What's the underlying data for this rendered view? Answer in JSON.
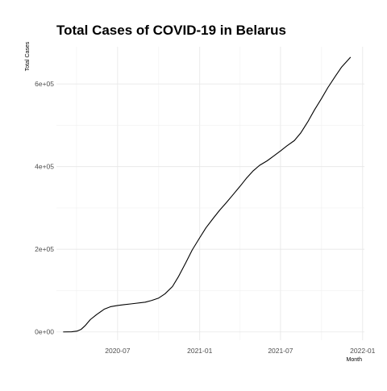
{
  "chart_data": {
    "type": "line",
    "title": "Total Cases of COVID-19 in Belarus",
    "xlabel": "Month",
    "ylabel": "Total Cases",
    "x_tick_labels": [
      "2020-07",
      "2021-01",
      "2021-07",
      "2022-01"
    ],
    "y_tick_labels": [
      "0e+00",
      "2e+05",
      "4e+05",
      "6e+05"
    ],
    "y_ticks": [
      0,
      200000,
      400000,
      600000
    ],
    "xlim": [
      "2020-02-15",
      "2022-01-05"
    ],
    "ylim": [
      -20000,
      690000
    ],
    "grid": true,
    "legend": "none",
    "line_color": "#000000",
    "series": [
      {
        "x": [
          "2020-03-01",
          "2020-03-20",
          "2020-04-01",
          "2020-04-10",
          "2020-04-20",
          "2020-05-01",
          "2020-05-15",
          "2020-06-01",
          "2020-06-15",
          "2020-07-01",
          "2020-07-15",
          "2020-08-01",
          "2020-09-01",
          "2020-09-15",
          "2020-10-01",
          "2020-10-15",
          "2020-11-01",
          "2020-11-15",
          "2020-12-01",
          "2020-12-15",
          "2021-01-01",
          "2021-01-15",
          "2021-02-01",
          "2021-02-15",
          "2021-03-01",
          "2021-03-15",
          "2021-04-01",
          "2021-04-15",
          "2021-05-01",
          "2021-05-15",
          "2021-06-01",
          "2021-06-15",
          "2021-07-01",
          "2021-07-15",
          "2021-08-01",
          "2021-08-15",
          "2021-09-01",
          "2021-09-15",
          "2021-10-01",
          "2021-10-15",
          "2021-11-01",
          "2021-11-15",
          "2021-12-05"
        ],
        "y": [
          0,
          300,
          2000,
          6000,
          16000,
          30000,
          42000,
          55000,
          61000,
          64000,
          66000,
          68000,
          72000,
          76000,
          82000,
          92000,
          110000,
          135000,
          168000,
          198000,
          228000,
          252000,
          276000,
          295000,
          312000,
          330000,
          352000,
          371000,
          390000,
          403000,
          414000,
          425000,
          438000,
          450000,
          463000,
          481000,
          510000,
          537000,
          565000,
          591000,
          619000,
          641000,
          665000
        ]
      }
    ]
  }
}
